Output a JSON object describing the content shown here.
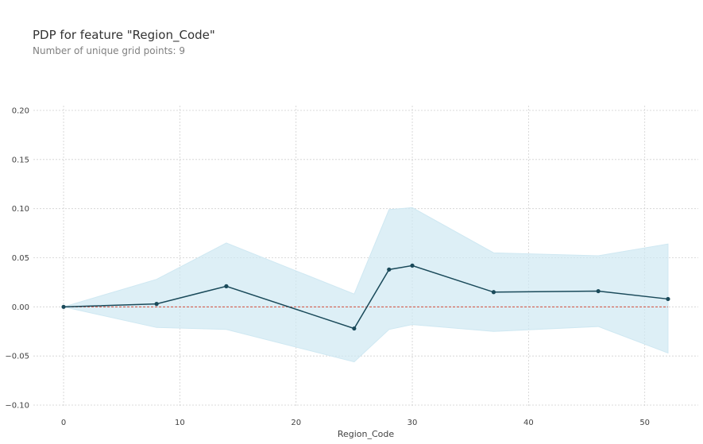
{
  "chart_data": {
    "type": "line",
    "title": "PDP for feature \"Region_Code\"",
    "subtitle": "Number of unique grid points: 9",
    "xlabel": "Region_Code",
    "ylabel": "",
    "x": [
      0,
      8,
      14,
      25,
      28,
      30,
      37,
      46,
      52
    ],
    "series": [
      {
        "values": [
          0.0,
          0.003,
          0.021,
          -0.022,
          0.038,
          0.042,
          0.015,
          0.016,
          0.008
        ]
      }
    ],
    "band_upper": [
      0.0,
      0.028,
      0.065,
      0.013,
      0.099,
      0.101,
      0.055,
      0.052,
      0.064
    ],
    "band_lower": [
      0.0,
      -0.021,
      -0.023,
      -0.056,
      -0.023,
      -0.018,
      -0.025,
      -0.02,
      -0.047
    ],
    "baseline": 0.0,
    "xticks": [
      0,
      10,
      20,
      30,
      40,
      50
    ],
    "xtick_labels": [
      "0",
      "10",
      "20",
      "30",
      "40",
      "50"
    ],
    "yticks": [
      0.2,
      0.15,
      0.1,
      0.05,
      0.0,
      -0.05,
      -0.1
    ],
    "ytick_labels": [
      "0.20",
      "0.15",
      "0.10",
      "0.05",
      "0.00",
      "−0.05",
      "−0.10"
    ],
    "xlim": [
      -2.6,
      54.6
    ],
    "ylim": [
      -0.1,
      0.2
    ],
    "grid": true,
    "legend": "none",
    "colors": {
      "line": "#1a4a5a",
      "band": "#cfe8f2",
      "baseline": "#d24b3a",
      "grid": "#d0d0d0"
    }
  }
}
